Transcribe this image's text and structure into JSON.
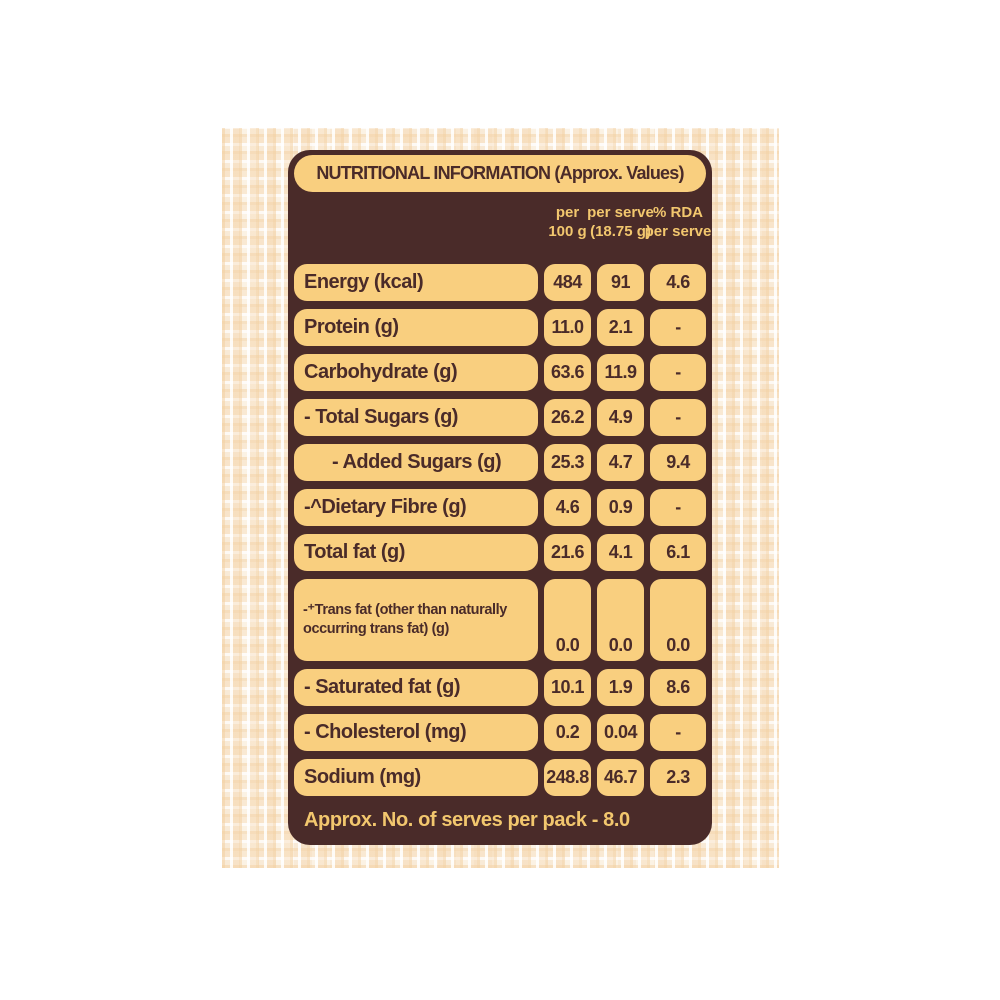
{
  "label": {
    "title": "NUTRITIONAL INFORMATION (Approx. Values)",
    "columns": [
      {
        "line1": "per",
        "line2": "100 g"
      },
      {
        "line1": "per serve",
        "line2": "(18.75 g)"
      },
      {
        "line1": "% RDA",
        "line2": "per serve"
      }
    ],
    "rows": [
      {
        "name": "Energy (kcal)",
        "per_100g": "484",
        "per_serve": "91",
        "rda_per_serve": "4.6"
      },
      {
        "name": "Protein (g)",
        "per_100g": "11.0",
        "per_serve": "2.1",
        "rda_per_serve": "-"
      },
      {
        "name": "Carbohydrate (g)",
        "per_100g": "63.6",
        "per_serve": "11.9",
        "rda_per_serve": "-"
      },
      {
        "name": "- Total Sugars (g)",
        "per_100g": "26.2",
        "per_serve": "4.9",
        "rda_per_serve": "-"
      },
      {
        "name": "- Added Sugars (g)",
        "per_100g": "25.3",
        "per_serve": "4.7",
        "rda_per_serve": "9.4"
      },
      {
        "name": "-^Dietary Fibre (g)",
        "per_100g": "4.6",
        "per_serve": "0.9",
        "rda_per_serve": "-"
      },
      {
        "name": "Total fat (g)",
        "per_100g": "21.6",
        "per_serve": "4.1",
        "rda_per_serve": "6.1"
      },
      {
        "name": "-⁺Trans fat (other than naturally occurring trans fat) (g)",
        "per_100g": "0.0",
        "per_serve": "0.0",
        "rda_per_serve": "0.0"
      },
      {
        "name": "- Saturated fat (g)",
        "per_100g": "10.1",
        "per_serve": "1.9",
        "rda_per_serve": "8.6"
      },
      {
        "name": "- Cholesterol (mg)",
        "per_100g": "0.2",
        "per_serve": "0.04",
        "rda_per_serve": "-"
      },
      {
        "name": "Sodium (mg)",
        "per_100g": "248.8",
        "per_serve": "46.7",
        "rda_per_serve": "2.3"
      }
    ],
    "footer": "Approx. No. of serves per pack - 8.0"
  },
  "colors": {
    "panel-brown": "#4a2b29",
    "cell-yellow": "#f9cf7f",
    "text-yellow": "#f2c76e",
    "burlap-base": "#faeedd"
  }
}
